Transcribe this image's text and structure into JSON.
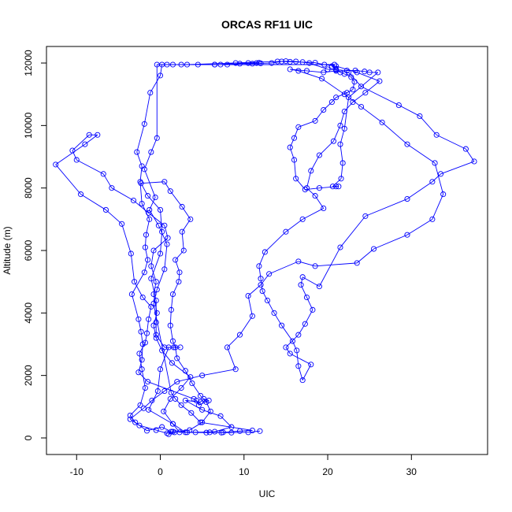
{
  "chart_data": {
    "type": "scatter",
    "title": "ORCAS RF11 UIC",
    "xlabel": "UIC",
    "ylabel": "Altitude (m)",
    "xlim": [
      -13.6,
      39.1
    ],
    "ylim": [
      -530,
      12530
    ],
    "xticks": [
      -10,
      0,
      10,
      20,
      30
    ],
    "yticks": [
      0,
      2000,
      4000,
      6000,
      8000,
      10000,
      12000
    ],
    "grid": false,
    "legend": "none",
    "color": "#0000ff",
    "marker": "open-circle",
    "connect_points": "line",
    "points": [
      [
        11.9,
        220
      ],
      [
        10.5,
        180
      ],
      [
        8.5,
        170
      ],
      [
        7.3,
        170
      ],
      [
        5.9,
        180
      ],
      [
        3.2,
        180
      ],
      [
        1.5,
        200
      ],
      [
        1.0,
        120
      ],
      [
        1.3,
        200
      ],
      [
        0.2,
        350
      ],
      [
        -1.6,
        230
      ],
      [
        -3.0,
        500
      ],
      [
        -3.6,
        720
      ],
      [
        -2.4,
        1050
      ],
      [
        -1.8,
        1600
      ],
      [
        -2.2,
        2200
      ],
      [
        -2.5,
        2700
      ],
      [
        -1.8,
        3050
      ],
      [
        -1.6,
        3350
      ],
      [
        -1.4,
        3800
      ],
      [
        -1.1,
        4200
      ],
      [
        -2.1,
        4500
      ],
      [
        -3.1,
        5000
      ],
      [
        -3.5,
        5900
      ],
      [
        -4.6,
        6850
      ],
      [
        -6.5,
        7300
      ],
      [
        -9.5,
        7800
      ],
      [
        -12.5,
        8750
      ],
      [
        -9.0,
        9400
      ],
      [
        -7.5,
        9700
      ],
      [
        -8.5,
        9700
      ],
      [
        -10.5,
        9200
      ],
      [
        -10.0,
        8900
      ],
      [
        -6.8,
        8450
      ],
      [
        -5.8,
        8000
      ],
      [
        -3.2,
        7600
      ],
      [
        -1.4,
        7200
      ],
      [
        0.5,
        6800
      ],
      [
        0.9,
        6400
      ],
      [
        -0.8,
        6000
      ],
      [
        -1.1,
        5500
      ],
      [
        -0.5,
        5000
      ],
      [
        -0.8,
        4600
      ],
      [
        -0.4,
        4000
      ],
      [
        -0.8,
        3600
      ],
      [
        -0.5,
        3200
      ],
      [
        0.2,
        2800
      ],
      [
        1.4,
        2400
      ],
      [
        3.6,
        1950
      ],
      [
        2.5,
        1600
      ],
      [
        1.2,
        1250
      ],
      [
        0.4,
        850
      ],
      [
        1.5,
        450
      ],
      [
        2.3,
        180
      ],
      [
        4.2,
        180
      ],
      [
        6.5,
        200
      ],
      [
        8.5,
        350
      ],
      [
        7.2,
        700
      ],
      [
        5.0,
        900
      ],
      [
        3.0,
        1200
      ],
      [
        4.8,
        1150
      ],
      [
        5.2,
        1250
      ],
      [
        5.8,
        1200
      ],
      [
        4.6,
        1050
      ],
      [
        4.3,
        1200
      ],
      [
        4.0,
        1250
      ],
      [
        -1.5,
        1800
      ],
      [
        -2.6,
        2100
      ],
      [
        -2.2,
        2500
      ],
      [
        -2.1,
        3000
      ],
      [
        -2.3,
        3400
      ],
      [
        -2.6,
        3800
      ],
      [
        -3.4,
        4600
      ],
      [
        -1.9,
        5300
      ],
      [
        -1.5,
        5700
      ],
      [
        -1.8,
        6100
      ],
      [
        -1.7,
        6500
      ],
      [
        -1.3,
        7000
      ],
      [
        -2.2,
        7500
      ],
      [
        -2.4,
        8200
      ],
      [
        -2.2,
        8700
      ],
      [
        -2.8,
        9150
      ],
      [
        -1.9,
        10050
      ],
      [
        -1.2,
        11050
      ],
      [
        0.0,
        11600
      ],
      [
        0.2,
        11950
      ],
      [
        0.8,
        11950
      ],
      [
        2.5,
        11950
      ],
      [
        4.5,
        11950
      ],
      [
        6.5,
        11950
      ],
      [
        8.0,
        11950
      ],
      [
        9.5,
        11980
      ],
      [
        11.0,
        11980
      ],
      [
        12.0,
        11990
      ],
      [
        13.3,
        12000
      ],
      [
        14.5,
        12050
      ],
      [
        15.5,
        12040
      ],
      [
        17.0,
        12030
      ],
      [
        18.5,
        12010
      ],
      [
        19.6,
        11950
      ],
      [
        21.0,
        11900
      ],
      [
        23.5,
        11700
      ],
      [
        26.2,
        11420
      ],
      [
        24.5,
        11050
      ],
      [
        23.0,
        10750
      ],
      [
        22.0,
        10450
      ],
      [
        21.5,
        10000
      ],
      [
        20.7,
        9500
      ],
      [
        19.0,
        9050
      ],
      [
        18.0,
        8550
      ],
      [
        17.5,
        8000
      ],
      [
        18.5,
        7750
      ],
      [
        19.5,
        7350
      ],
      [
        17.0,
        7000
      ],
      [
        15.0,
        6600
      ],
      [
        12.5,
        5950
      ],
      [
        11.8,
        5500
      ],
      [
        12.0,
        5100
      ],
      [
        12.2,
        4700
      ],
      [
        12.8,
        4400
      ],
      [
        13.6,
        4000
      ],
      [
        14.5,
        3600
      ],
      [
        15.8,
        3100
      ],
      [
        16.3,
        2800
      ],
      [
        16.5,
        2300
      ],
      [
        17.0,
        1850
      ],
      [
        18.0,
        2350
      ],
      [
        15.5,
        2700
      ],
      [
        15.0,
        2900
      ],
      [
        16.5,
        3300
      ],
      [
        17.3,
        3650
      ],
      [
        18.2,
        4100
      ],
      [
        17.5,
        4500
      ],
      [
        16.8,
        4900
      ],
      [
        17.0,
        5150
      ],
      [
        19.0,
        4850
      ],
      [
        21.5,
        6100
      ],
      [
        24.5,
        7100
      ],
      [
        29.5,
        7650
      ],
      [
        32.5,
        8200
      ],
      [
        33.5,
        8450
      ],
      [
        37.5,
        8850
      ],
      [
        36.5,
        9250
      ],
      [
        33.0,
        9700
      ],
      [
        31.0,
        10300
      ],
      [
        28.5,
        10650
      ],
      [
        24.0,
        11250
      ],
      [
        22.5,
        11700
      ],
      [
        21.0,
        11750
      ],
      [
        19.5,
        11700
      ],
      [
        17.5,
        11750
      ],
      [
        15.5,
        11800
      ],
      [
        16.5,
        11750
      ],
      [
        19.3,
        11500
      ],
      [
        22.0,
        11000
      ],
      [
        24.0,
        10600
      ],
      [
        26.5,
        10100
      ],
      [
        29.5,
        9400
      ],
      [
        32.8,
        8800
      ],
      [
        33.8,
        7800
      ],
      [
        32.5,
        7000
      ],
      [
        29.5,
        6500
      ],
      [
        25.5,
        6050
      ],
      [
        23.5,
        5600
      ],
      [
        18.5,
        5500
      ],
      [
        16.5,
        5650
      ],
      [
        13.0,
        5250
      ],
      [
        12.0,
        4900
      ],
      [
        10.5,
        4550
      ],
      [
        11.0,
        3900
      ],
      [
        9.5,
        3300
      ],
      [
        8.0,
        2900
      ],
      [
        9.0,
        2200
      ],
      [
        5.0,
        2000
      ],
      [
        2.0,
        1800
      ],
      [
        0.5,
        1500
      ],
      [
        -1.0,
        1200
      ],
      [
        -2.0,
        950
      ],
      [
        -3.6,
        600
      ],
      [
        -2.5,
        400
      ],
      [
        -0.5,
        250
      ],
      [
        0.8,
        150
      ],
      [
        1.7,
        180
      ],
      [
        3.5,
        250
      ],
      [
        5.0,
        500
      ],
      [
        6.0,
        850
      ],
      [
        5.5,
        1150
      ],
      [
        4.8,
        1350
      ],
      [
        3.8,
        1750
      ],
      [
        3.0,
        2150
      ],
      [
        2.0,
        2550
      ],
      [
        1.8,
        2900
      ],
      [
        1.5,
        3100
      ],
      [
        1.2,
        3600
      ],
      [
        1.3,
        4100
      ],
      [
        1.5,
        4600
      ],
      [
        2.2,
        5000
      ],
      [
        2.3,
        5300
      ],
      [
        1.8,
        5700
      ],
      [
        2.8,
        6000
      ],
      [
        2.6,
        6600
      ],
      [
        3.6,
        7000
      ],
      [
        2.6,
        7400
      ],
      [
        1.2,
        7900
      ],
      [
        0.5,
        8200
      ],
      [
        -2.3,
        8150
      ],
      [
        -1.5,
        7750
      ],
      [
        0.0,
        7300
      ],
      [
        0.2,
        6600
      ],
      [
        0.0,
        5900
      ],
      [
        -1.1,
        5100
      ],
      [
        -0.5,
        4400
      ],
      [
        -0.5,
        3700
      ],
      [
        -0.5,
        3300
      ],
      [
        0.5,
        2900
      ],
      [
        1.6,
        2900
      ],
      [
        2.4,
        2900
      ],
      [
        1.0,
        2900
      ],
      [
        0.0,
        2200
      ],
      [
        -0.3,
        1500
      ],
      [
        -1.4,
        900
      ],
      [
        1.5,
        450
      ],
      [
        3.0,
        180
      ],
      [
        5.5,
        170
      ],
      [
        7.5,
        180
      ],
      [
        9.5,
        220
      ],
      [
        11.0,
        240
      ],
      [
        4.8,
        500
      ],
      [
        3.7,
        800
      ],
      [
        2.5,
        1050
      ],
      [
        1.8,
        1250
      ],
      [
        1.3,
        1450
      ],
      [
        -0.8,
        4300
      ],
      [
        -0.4,
        4750
      ],
      [
        0.5,
        5400
      ],
      [
        0.8,
        6200
      ],
      [
        -0.2,
        6800
      ],
      [
        -1.3,
        7300
      ],
      [
        -0.6,
        7700
      ],
      [
        -1.9,
        8600
      ],
      [
        -1.1,
        9150
      ],
      [
        -0.4,
        9600
      ],
      [
        -0.4,
        11950
      ],
      [
        1.5,
        11950
      ],
      [
        3.2,
        11950
      ],
      [
        14.0,
        12050
      ],
      [
        15.0,
        12060
      ],
      [
        16.2,
        12050
      ],
      [
        17.8,
        12000
      ],
      [
        20.0,
        11800
      ],
      [
        21.0,
        11780
      ],
      [
        22.3,
        11760
      ],
      [
        23.3,
        11760
      ],
      [
        24.4,
        11730
      ],
      [
        25.0,
        11700
      ],
      [
        26.0,
        11700
      ],
      [
        22.5,
        10900
      ],
      [
        22.0,
        9900
      ],
      [
        21.5,
        9400
      ],
      [
        21.8,
        8800
      ],
      [
        21.6,
        8300
      ],
      [
        20.6,
        8050
      ],
      [
        21.0,
        8050
      ],
      [
        21.3,
        8050
      ],
      [
        19.0,
        8000
      ],
      [
        17.3,
        7950
      ],
      [
        16.2,
        8300
      ],
      [
        16.0,
        8900
      ],
      [
        15.5,
        9300
      ],
      [
        16.0,
        9600
      ],
      [
        16.5,
        9950
      ],
      [
        18.5,
        10150
      ],
      [
        19.5,
        10500
      ],
      [
        20.5,
        10750
      ],
      [
        21.0,
        10900
      ],
      [
        22.3,
        11050
      ],
      [
        23.0,
        11150
      ],
      [
        23.2,
        11400
      ],
      [
        22.8,
        11550
      ],
      [
        22.0,
        11650
      ],
      [
        21.5,
        11700
      ],
      [
        21.0,
        11800
      ],
      [
        20.5,
        11900
      ],
      [
        20.8,
        11950
      ],
      [
        6.5,
        11950
      ],
      [
        7.2,
        11950
      ],
      [
        9.0,
        12000
      ],
      [
        10.5,
        12000
      ],
      [
        11.5,
        12000
      ],
      [
        11.8,
        12010
      ]
    ]
  }
}
